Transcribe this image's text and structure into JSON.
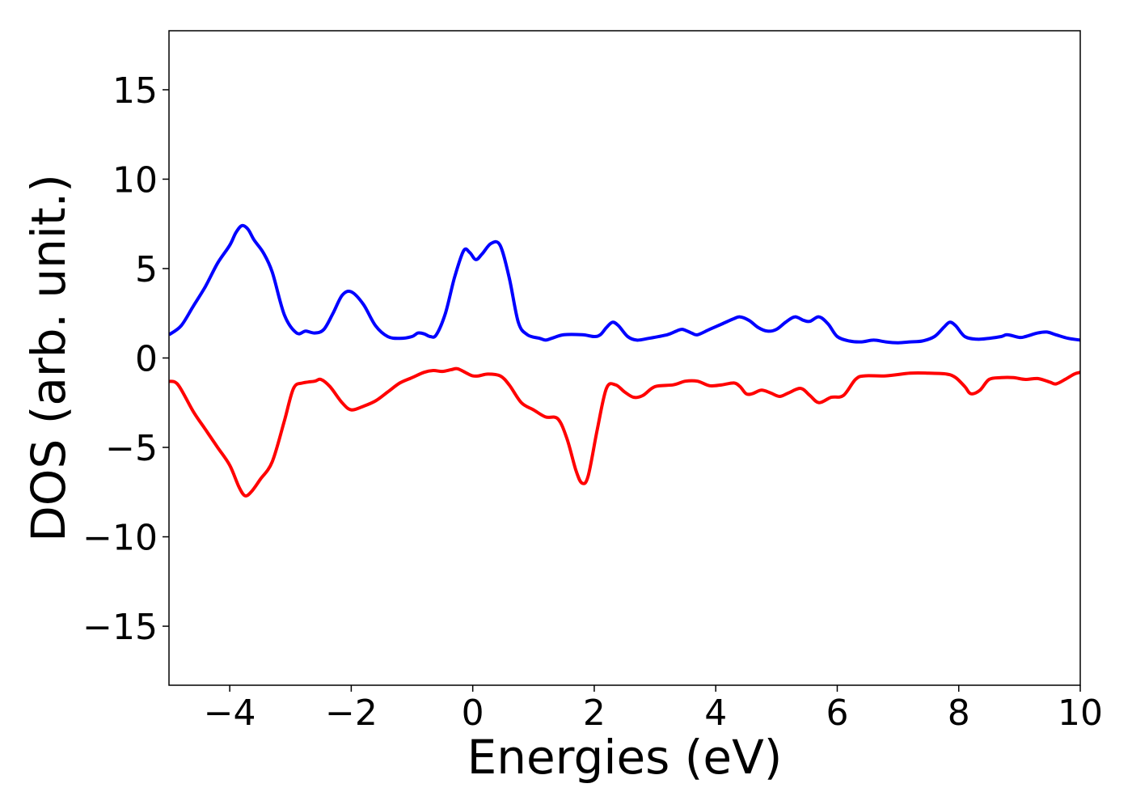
{
  "chart_data": {
    "type": "line",
    "title": "",
    "xlabel": "Energies (eV)",
    "ylabel": "DOS (arb. unit.)",
    "xlim": [
      -5,
      10
    ],
    "ylim": [
      -18.3,
      18.3
    ],
    "grid": false,
    "legend": "none",
    "xticks": [
      -4,
      -2,
      0,
      2,
      4,
      6,
      8,
      10
    ],
    "yticks": [
      -15,
      -10,
      -5,
      0,
      5,
      10,
      15
    ],
    "xtick_labels": [
      "−4",
      "−2",
      "0",
      "2",
      "4",
      "6",
      "8",
      "10"
    ],
    "ytick_labels": [
      "−15",
      "−10",
      "−5",
      "0",
      "5",
      "10",
      "15"
    ],
    "series": [
      {
        "color": "#0000ff",
        "points": [
          [
            -5.0,
            1.3
          ],
          [
            -4.8,
            1.8
          ],
          [
            -4.6,
            2.9
          ],
          [
            -4.4,
            4.0
          ],
          [
            -4.2,
            5.3
          ],
          [
            -4.0,
            6.3
          ],
          [
            -3.9,
            7.0
          ],
          [
            -3.8,
            7.4
          ],
          [
            -3.7,
            7.2
          ],
          [
            -3.6,
            6.6
          ],
          [
            -3.45,
            5.9
          ],
          [
            -3.3,
            4.8
          ],
          [
            -3.1,
            2.4
          ],
          [
            -2.9,
            1.4
          ],
          [
            -2.75,
            1.5
          ],
          [
            -2.6,
            1.4
          ],
          [
            -2.45,
            1.6
          ],
          [
            -2.3,
            2.5
          ],
          [
            -2.15,
            3.5
          ],
          [
            -2.0,
            3.7
          ],
          [
            -1.8,
            3.0
          ],
          [
            -1.6,
            1.8
          ],
          [
            -1.4,
            1.2
          ],
          [
            -1.2,
            1.1
          ],
          [
            -1.0,
            1.2
          ],
          [
            -0.9,
            1.4
          ],
          [
            -0.8,
            1.35
          ],
          [
            -0.7,
            1.2
          ],
          [
            -0.6,
            1.3
          ],
          [
            -0.45,
            2.5
          ],
          [
            -0.3,
            4.5
          ],
          [
            -0.15,
            6.0
          ],
          [
            -0.05,
            5.9
          ],
          [
            0.05,
            5.5
          ],
          [
            0.15,
            5.8
          ],
          [
            0.3,
            6.4
          ],
          [
            0.45,
            6.3
          ],
          [
            0.6,
            4.5
          ],
          [
            0.75,
            2.0
          ],
          [
            0.9,
            1.3
          ],
          [
            1.1,
            1.1
          ],
          [
            1.2,
            1.0
          ],
          [
            1.3,
            1.1
          ],
          [
            1.5,
            1.3
          ],
          [
            1.8,
            1.3
          ],
          [
            2.0,
            1.2
          ],
          [
            2.1,
            1.3
          ],
          [
            2.2,
            1.7
          ],
          [
            2.3,
            2.0
          ],
          [
            2.4,
            1.8
          ],
          [
            2.55,
            1.2
          ],
          [
            2.7,
            1.0
          ],
          [
            2.9,
            1.1
          ],
          [
            3.2,
            1.3
          ],
          [
            3.35,
            1.5
          ],
          [
            3.45,
            1.6
          ],
          [
            3.6,
            1.4
          ],
          [
            3.7,
            1.3
          ],
          [
            3.9,
            1.6
          ],
          [
            4.1,
            1.9
          ],
          [
            4.3,
            2.2
          ],
          [
            4.4,
            2.3
          ],
          [
            4.55,
            2.1
          ],
          [
            4.7,
            1.7
          ],
          [
            4.85,
            1.5
          ],
          [
            5.0,
            1.6
          ],
          [
            5.15,
            2.0
          ],
          [
            5.3,
            2.3
          ],
          [
            5.45,
            2.1
          ],
          [
            5.55,
            2.05
          ],
          [
            5.7,
            2.3
          ],
          [
            5.85,
            1.9
          ],
          [
            6.0,
            1.2
          ],
          [
            6.2,
            0.95
          ],
          [
            6.4,
            0.9
          ],
          [
            6.6,
            1.0
          ],
          [
            6.8,
            0.9
          ],
          [
            7.0,
            0.85
          ],
          [
            7.2,
            0.9
          ],
          [
            7.4,
            0.95
          ],
          [
            7.6,
            1.2
          ],
          [
            7.75,
            1.7
          ],
          [
            7.85,
            2.0
          ],
          [
            7.95,
            1.8
          ],
          [
            8.1,
            1.2
          ],
          [
            8.3,
            1.05
          ],
          [
            8.5,
            1.1
          ],
          [
            8.7,
            1.2
          ],
          [
            8.8,
            1.3
          ],
          [
            9.0,
            1.15
          ],
          [
            9.1,
            1.2
          ],
          [
            9.3,
            1.4
          ],
          [
            9.45,
            1.45
          ],
          [
            9.6,
            1.3
          ],
          [
            9.8,
            1.1
          ],
          [
            10.0,
            1.0
          ]
        ]
      },
      {
        "color": "#ff0000",
        "points": [
          [
            -5.0,
            -1.3
          ],
          [
            -4.85,
            -1.5
          ],
          [
            -4.6,
            -3.0
          ],
          [
            -4.4,
            -4.0
          ],
          [
            -4.2,
            -5.0
          ],
          [
            -4.0,
            -6.0
          ],
          [
            -3.85,
            -7.2
          ],
          [
            -3.75,
            -7.7
          ],
          [
            -3.65,
            -7.5
          ],
          [
            -3.5,
            -6.8
          ],
          [
            -3.3,
            -5.8
          ],
          [
            -3.1,
            -3.5
          ],
          [
            -2.95,
            -1.7
          ],
          [
            -2.8,
            -1.4
          ],
          [
            -2.6,
            -1.3
          ],
          [
            -2.5,
            -1.2
          ],
          [
            -2.35,
            -1.6
          ],
          [
            -2.15,
            -2.5
          ],
          [
            -2.0,
            -2.9
          ],
          [
            -1.8,
            -2.7
          ],
          [
            -1.6,
            -2.4
          ],
          [
            -1.4,
            -1.9
          ],
          [
            -1.2,
            -1.4
          ],
          [
            -1.0,
            -1.1
          ],
          [
            -0.8,
            -0.8
          ],
          [
            -0.65,
            -0.7
          ],
          [
            -0.5,
            -0.75
          ],
          [
            -0.35,
            -0.65
          ],
          [
            -0.25,
            -0.6
          ],
          [
            -0.1,
            -0.85
          ],
          [
            0.0,
            -1.0
          ],
          [
            0.1,
            -1.0
          ],
          [
            0.25,
            -0.9
          ],
          [
            0.45,
            -1.0
          ],
          [
            0.6,
            -1.5
          ],
          [
            0.8,
            -2.5
          ],
          [
            1.0,
            -2.9
          ],
          [
            1.2,
            -3.3
          ],
          [
            1.4,
            -3.4
          ],
          [
            1.55,
            -4.5
          ],
          [
            1.7,
            -6.3
          ],
          [
            1.8,
            -7.0
          ],
          [
            1.9,
            -6.6
          ],
          [
            2.05,
            -4.0
          ],
          [
            2.2,
            -1.7
          ],
          [
            2.35,
            -1.5
          ],
          [
            2.5,
            -1.9
          ],
          [
            2.65,
            -2.2
          ],
          [
            2.8,
            -2.1
          ],
          [
            3.0,
            -1.6
          ],
          [
            3.3,
            -1.5
          ],
          [
            3.5,
            -1.3
          ],
          [
            3.7,
            -1.3
          ],
          [
            3.9,
            -1.55
          ],
          [
            4.1,
            -1.5
          ],
          [
            4.3,
            -1.4
          ],
          [
            4.4,
            -1.6
          ],
          [
            4.5,
            -2.0
          ],
          [
            4.6,
            -2.0
          ],
          [
            4.75,
            -1.8
          ],
          [
            4.9,
            -1.95
          ],
          [
            5.05,
            -2.15
          ],
          [
            5.2,
            -1.95
          ],
          [
            5.4,
            -1.7
          ],
          [
            5.55,
            -2.1
          ],
          [
            5.7,
            -2.5
          ],
          [
            5.9,
            -2.2
          ],
          [
            6.1,
            -2.1
          ],
          [
            6.3,
            -1.2
          ],
          [
            6.45,
            -1.0
          ],
          [
            6.8,
            -1.0
          ],
          [
            7.2,
            -0.85
          ],
          [
            7.5,
            -0.85
          ],
          [
            7.8,
            -0.9
          ],
          [
            7.95,
            -1.1
          ],
          [
            8.1,
            -1.6
          ],
          [
            8.2,
            -2.0
          ],
          [
            8.35,
            -1.8
          ],
          [
            8.5,
            -1.2
          ],
          [
            8.7,
            -1.1
          ],
          [
            8.9,
            -1.1
          ],
          [
            9.1,
            -1.2
          ],
          [
            9.3,
            -1.15
          ],
          [
            9.5,
            -1.35
          ],
          [
            9.6,
            -1.45
          ],
          [
            9.75,
            -1.2
          ],
          [
            9.9,
            -0.9
          ],
          [
            10.0,
            -0.8
          ]
        ]
      }
    ]
  }
}
